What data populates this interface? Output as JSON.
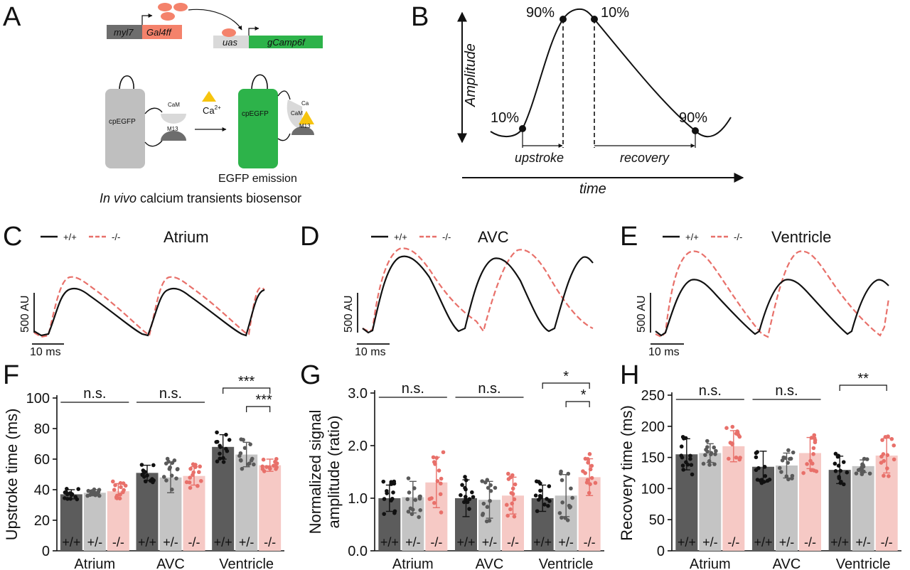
{
  "panel_labels": [
    "A",
    "B",
    "C",
    "D",
    "E",
    "F",
    "G",
    "H"
  ],
  "panel_a": {
    "promoter": "myl7",
    "driver": "Gal4ff",
    "uas": "uas",
    "reporter": "gCamp6f",
    "sensor_left": "cpEGFP",
    "sensor_right": "cpEGFP",
    "cam": "CaM",
    "m13": "M13",
    "ca": "Ca",
    "ca_sup": "2+",
    "cam_small": "CaM",
    "ca_small": "Ca",
    "m13_small": "M13",
    "emission": "EGFP emission",
    "caption_italic": "In vivo",
    "caption_rest": " calcium transients biosensor",
    "colors": {
      "driver": "#f4826b",
      "reporter": "#2db34a",
      "sensor_grey": "#bfbfbf",
      "sensor_green": "#2db34a",
      "calcium": "#f6c40e"
    }
  },
  "panel_b": {
    "yaxis": "Amplitude",
    "xaxis": "time",
    "p10_up": "10%",
    "p90_up": "90%",
    "p10_down": "10%",
    "p90_down": "90%",
    "upstroke": "upstroke",
    "recovery": "recovery"
  },
  "traces": {
    "legend_wt": "+/+",
    "legend_ko": "-/-",
    "scale_y": "500 AU",
    "scale_x": "10 ms",
    "wt_color": "#111111",
    "ko_color": "#e8706a",
    "panels": [
      {
        "title": "Atrium"
      },
      {
        "title": "AVC"
      },
      {
        "title": "Ventricle"
      }
    ]
  },
  "chart_data": [
    {
      "type": "bar",
      "panel": "F",
      "ylabel": "Upstroke time (ms)",
      "ylim": [
        0,
        100
      ],
      "yticks": [
        0,
        20,
        40,
        60,
        80,
        100
      ],
      "categories": [
        "Atrium",
        "AVC",
        "Ventricle"
      ],
      "genotypes": [
        "+/+",
        "+/-",
        "-/-"
      ],
      "series": [
        {
          "name": "+/+",
          "values": [
            37,
            51,
            68
          ],
          "sd": [
            3,
            5,
            8
          ]
        },
        {
          "name": "+/-",
          "values": [
            38,
            48,
            63
          ],
          "sd": [
            2,
            10,
            8
          ]
        },
        {
          "name": "-/-",
          "values": [
            39,
            49,
            56
          ],
          "sd": [
            5,
            6,
            4
          ]
        }
      ],
      "significance": [
        {
          "group": "Atrium",
          "label": "n.s."
        },
        {
          "group": "AVC",
          "label": "n.s."
        },
        {
          "group": "Ventricle",
          "label": "***",
          "compare": [
            "+/+",
            "-/-"
          ]
        },
        {
          "group": "Ventricle",
          "label": "***",
          "compare": [
            "+/-",
            "-/-"
          ]
        }
      ]
    },
    {
      "type": "bar",
      "panel": "G",
      "ylabel": "Normalized signal amplitude (ratio)",
      "ylabel_line1": "Normalized signal",
      "ylabel_line2": "amplitude (ratio)",
      "ylim": [
        0,
        3
      ],
      "yticks": [
        "0.0",
        "1.0",
        "2.0",
        "3.0"
      ],
      "categories": [
        "Atrium",
        "AVC",
        "Ventricle"
      ],
      "genotypes": [
        "+/+",
        "+/-",
        "-/-"
      ],
      "series": [
        {
          "name": "+/+",
          "values": [
            1.0,
            1.0,
            1.0
          ],
          "sd": [
            0.25,
            0.35,
            0.25
          ]
        },
        {
          "name": "+/-",
          "values": [
            1.02,
            0.97,
            1.05
          ],
          "sd": [
            0.3,
            0.35,
            0.4
          ]
        },
        {
          "name": "-/-",
          "values": [
            1.3,
            1.05,
            1.4
          ],
          "sd": [
            0.48,
            0.35,
            0.35
          ]
        }
      ],
      "significance": [
        {
          "group": "Atrium",
          "label": "n.s."
        },
        {
          "group": "AVC",
          "label": "n.s."
        },
        {
          "group": "Ventricle",
          "label": "*",
          "compare": [
            "+/+",
            "-/-"
          ]
        },
        {
          "group": "Ventricle",
          "label": "*",
          "compare": [
            "+/-",
            "-/-"
          ]
        }
      ]
    },
    {
      "type": "bar",
      "panel": "H",
      "ylabel": "Recovery time (ms)",
      "ylim": [
        0,
        250
      ],
      "yticks": [
        0,
        50,
        100,
        150,
        200,
        250
      ],
      "categories": [
        "Atrium",
        "AVC",
        "Ventricle"
      ],
      "genotypes": [
        "+/+",
        "+/-",
        "-/-"
      ],
      "series": [
        {
          "name": "+/+",
          "values": [
            155,
            135,
            130
          ],
          "sd": [
            25,
            25,
            22
          ]
        },
        {
          "name": "+/-",
          "values": [
            157,
            137,
            136
          ],
          "sd": [
            15,
            20,
            10
          ]
        },
        {
          "name": "-/-",
          "values": [
            168,
            157,
            153
          ],
          "sd": [
            25,
            25,
            28
          ]
        }
      ],
      "significance": [
        {
          "group": "Atrium",
          "label": "n.s."
        },
        {
          "group": "AVC",
          "label": "n.s."
        },
        {
          "group": "Ventricle",
          "label": "**",
          "compare": [
            "+/+",
            "-/-"
          ]
        }
      ]
    }
  ],
  "bar_colors": {
    "+/+": "#5c5c5c",
    "+/-": "#c4c4c4",
    "-/-": "#f6c9c5"
  },
  "dot_colors": {
    "+/+": "#111111",
    "+/-": "#5a5a5a",
    "-/-": "#e8706a"
  }
}
